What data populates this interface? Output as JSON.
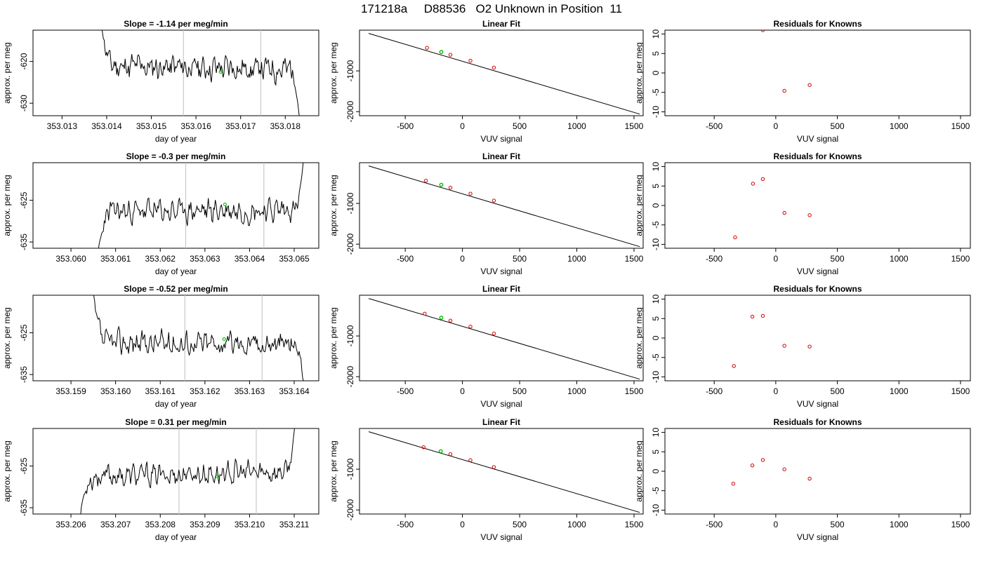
{
  "header": {
    "title": "171218a     D88536   O2 Unknown in Position  11"
  },
  "chart_data": [
    {
      "type": "line",
      "title": "Slope =  -1.14  per meg/min",
      "xlabel": "day of year",
      "ylabel": "approx. per meg",
      "xlim": [
        353.01235,
        353.01875
      ],
      "ylim": [
        -633,
        -612.5
      ],
      "xticks": [
        353.013,
        353.014,
        353.015,
        353.016,
        353.017,
        353.018
      ],
      "yticks": [
        -620,
        -630
      ],
      "xtick_labels": [
        "353.013",
        "353.014",
        "353.015",
        "353.016",
        "353.017",
        "353.018"
      ],
      "ytick_labels": [
        "-620",
        "-630"
      ],
      "vlines": [
        353.01572,
        353.01745
      ],
      "marker": {
        "x": 353.01655,
        "y": -622.5
      },
      "trace": {
        "x_start": 353.01385,
        "x_end": 353.01835,
        "start_level": -609,
        "end_level": -637,
        "mean": -621.5,
        "drift": -0.8,
        "amplitude": 2.2,
        "seed": 11
      }
    },
    {
      "type": "scatter",
      "title": "Linear Fit",
      "xlabel": "VUV signal",
      "ylabel": "approx. per meg",
      "xlim": [
        -900,
        1580
      ],
      "ylim": [
        -2100,
        0
      ],
      "xticks": [
        -500,
        0,
        500,
        1000,
        1500
      ],
      "yticks": [
        -1000,
        -2000
      ],
      "xtick_labels": [
        "-500",
        "0",
        "500",
        "1000",
        "1500"
      ],
      "ytick_labels": [
        "-1000",
        "-2000"
      ],
      "fit_line": {
        "x": [
          -820,
          1550
        ],
        "y": [
          -80,
          -2060
        ]
      },
      "knowns": [
        {
          "x": -310,
          "y": -433
        },
        {
          "x": -105,
          "y": -603
        },
        {
          "x": 70,
          "y": -750
        },
        {
          "x": 275,
          "y": -920
        }
      ],
      "unknown": {
        "x": -185,
        "y": -537
      }
    },
    {
      "type": "scatter",
      "title": "Residuals for Knowns",
      "xlabel": "VUV signal",
      "ylabel": "approx. per meg",
      "xlim": [
        -900,
        1580
      ],
      "ylim": [
        -11,
        11
      ],
      "xticks": [
        -500,
        0,
        500,
        1000,
        1500
      ],
      "yticks": [
        10,
        5,
        0,
        -5,
        -10
      ],
      "xtick_labels": [
        "-500",
        "0",
        "500",
        "1000",
        "1500"
      ],
      "ytick_labels": [
        "10",
        "5",
        "0",
        "-5",
        "-10"
      ],
      "points": [
        {
          "x": -105,
          "y": 11
        },
        {
          "x": 70,
          "y": -4.6
        },
        {
          "x": 275,
          "y": -3.1
        }
      ]
    },
    {
      "type": "line",
      "title": "Slope =  -0.3  per meg/min",
      "xlabel": "day of year",
      "ylabel": "approx. per meg",
      "xlim": [
        353.05915,
        353.06555
      ],
      "ylim": [
        -636.5,
        -616
      ],
      "xticks": [
        353.06,
        353.061,
        353.062,
        353.063,
        353.064,
        353.065
      ],
      "yticks": [
        -625,
        -635
      ],
      "xtick_labels": [
        "353.060",
        "353.061",
        "353.062",
        "353.063",
        "353.064",
        "353.065"
      ],
      "ytick_labels": [
        "-625",
        "-635"
      ],
      "vlines": [
        353.06257,
        353.06432
      ],
      "marker": {
        "x": 353.06345,
        "y": -626
      },
      "trace": {
        "x_start": 353.06055,
        "x_end": 353.06525,
        "start_level": -643,
        "end_level": -610,
        "mean": -627.5,
        "drift": 0.6,
        "amplitude": 2.0,
        "seed": 23
      }
    },
    {
      "type": "scatter",
      "title": "Linear Fit",
      "xlabel": "VUV signal",
      "ylabel": "approx. per meg",
      "xlim": [
        -900,
        1580
      ],
      "ylim": [
        -2100,
        0
      ],
      "xticks": [
        -500,
        0,
        500,
        1000,
        1500
      ],
      "yticks": [
        -1000,
        -2000
      ],
      "xtick_labels": [
        "-500",
        "0",
        "500",
        "1000",
        "1500"
      ],
      "ytick_labels": [
        "-1000",
        "-2000"
      ],
      "fit_line": {
        "x": [
          -820,
          1550
        ],
        "y": [
          -80,
          -2060
        ]
      },
      "knowns": [
        {
          "x": -320,
          "y": -443
        },
        {
          "x": -105,
          "y": -613
        },
        {
          "x": 70,
          "y": -760
        },
        {
          "x": 275,
          "y": -930
        }
      ],
      "unknown": {
        "x": -185,
        "y": -543
      }
    },
    {
      "type": "scatter",
      "title": "Residuals for Knowns",
      "xlabel": "VUV signal",
      "ylabel": "approx. per meg",
      "xlim": [
        -900,
        1580
      ],
      "ylim": [
        -11,
        11
      ],
      "xticks": [
        -500,
        0,
        500,
        1000,
        1500
      ],
      "yticks": [
        10,
        5,
        0,
        -5,
        -10
      ],
      "xtick_labels": [
        "-500",
        "0",
        "500",
        "1000",
        "1500"
      ],
      "ytick_labels": [
        "10",
        "5",
        "0",
        "-5",
        "-10"
      ],
      "points": [
        {
          "x": -330,
          "y": -8.2
        },
        {
          "x": -185,
          "y": 5.6
        },
        {
          "x": -105,
          "y": 6.8
        },
        {
          "x": 70,
          "y": -1.9
        },
        {
          "x": 275,
          "y": -2.5
        }
      ]
    },
    {
      "type": "line",
      "title": "Slope =  -0.52  per meg/min",
      "xlabel": "day of year",
      "ylabel": "approx. per meg",
      "xlim": [
        353.15815,
        353.16455
      ],
      "ylim": [
        -636.5,
        -616
      ],
      "xticks": [
        353.159,
        353.16,
        353.161,
        353.162,
        353.163,
        353.164
      ],
      "yticks": [
        -625,
        -635
      ],
      "xtick_labels": [
        "353.159",
        "353.160",
        "353.161",
        "353.162",
        "353.163",
        "353.164"
      ],
      "ytick_labels": [
        "-625",
        "-635"
      ],
      "vlines": [
        353.16155,
        353.16328
      ],
      "marker": {
        "x": 353.16243,
        "y": -626.5
      },
      "trace": {
        "x_start": 353.15945,
        "x_end": 353.16425,
        "start_level": -612,
        "end_level": -640,
        "mean": -627.5,
        "drift": -0.3,
        "amplitude": 2.1,
        "seed": 37
      }
    },
    {
      "type": "scatter",
      "title": "Linear Fit",
      "xlabel": "VUV signal",
      "ylabel": "approx. per meg",
      "xlim": [
        -900,
        1580
      ],
      "ylim": [
        -2100,
        0
      ],
      "xticks": [
        -500,
        0,
        500,
        1000,
        1500
      ],
      "yticks": [
        -1000,
        -2000
      ],
      "xtick_labels": [
        "-500",
        "0",
        "500",
        "1000",
        "1500"
      ],
      "ytick_labels": [
        "-1000",
        "-2000"
      ],
      "fit_line": {
        "x": [
          -820,
          1550
        ],
        "y": [
          -80,
          -2060
        ]
      },
      "knowns": [
        {
          "x": -330,
          "y": -453
        },
        {
          "x": -105,
          "y": -623
        },
        {
          "x": 70,
          "y": -770
        },
        {
          "x": 275,
          "y": -940
        }
      ],
      "unknown": {
        "x": -185,
        "y": -553
      }
    },
    {
      "type": "scatter",
      "title": "Residuals for Knowns",
      "xlabel": "VUV signal",
      "ylabel": "approx. per meg",
      "xlim": [
        -900,
        1580
      ],
      "ylim": [
        -11,
        11
      ],
      "xticks": [
        -500,
        0,
        500,
        1000,
        1500
      ],
      "yticks": [
        10,
        5,
        0,
        -5,
        -10
      ],
      "xtick_labels": [
        "-500",
        "0",
        "500",
        "1000",
        "1500"
      ],
      "ytick_labels": [
        "10",
        "5",
        "0",
        "-5",
        "-10"
      ],
      "points": [
        {
          "x": -340,
          "y": -7.2
        },
        {
          "x": -190,
          "y": 5.5
        },
        {
          "x": -105,
          "y": 5.7
        },
        {
          "x": 70,
          "y": -2
        },
        {
          "x": 275,
          "y": -2.2
        }
      ]
    },
    {
      "type": "line",
      "title": "Slope =  0.31  per meg/min",
      "xlabel": "day of year",
      "ylabel": "approx. per meg",
      "xlim": [
        353.20515,
        353.21155
      ],
      "ylim": [
        -636.5,
        -616
      ],
      "xticks": [
        353.206,
        353.207,
        353.208,
        353.209,
        353.21,
        353.211
      ],
      "yticks": [
        -625,
        -635
      ],
      "xtick_labels": [
        "353.206",
        "353.207",
        "353.208",
        "353.209",
        "353.210",
        "353.211"
      ],
      "ytick_labels": [
        "-625",
        "-635"
      ],
      "vlines": [
        353.20842,
        353.21015
      ],
      "marker": {
        "x": 353.20928,
        "y": -627.5
      },
      "trace": {
        "x_start": 353.20615,
        "x_end": 353.21105,
        "start_level": -641,
        "end_level": -612,
        "mean": -627,
        "drift": 1.3,
        "amplitude": 1.9,
        "seed": 53
      }
    },
    {
      "type": "scatter",
      "title": "Linear Fit",
      "xlabel": "VUV signal",
      "ylabel": "approx. per meg",
      "xlim": [
        -900,
        1580
      ],
      "ylim": [
        -2100,
        0
      ],
      "xticks": [
        -500,
        0,
        500,
        1000,
        1500
      ],
      "yticks": [
        -1000,
        -2000
      ],
      "xtick_labels": [
        "-500",
        "0",
        "500",
        "1000",
        "1500"
      ],
      "ytick_labels": [
        "-1000",
        "-2000"
      ],
      "fit_line": {
        "x": [
          -820,
          1550
        ],
        "y": [
          -80,
          -2060
        ]
      },
      "knowns": [
        {
          "x": -340,
          "y": -460
        },
        {
          "x": -105,
          "y": -632
        },
        {
          "x": 70,
          "y": -778
        },
        {
          "x": 275,
          "y": -948
        }
      ],
      "unknown": {
        "x": -190,
        "y": -560
      }
    },
    {
      "type": "scatter",
      "title": "Residuals for Knowns",
      "xlabel": "VUV signal",
      "ylabel": "approx. per meg",
      "xlim": [
        -900,
        1580
      ],
      "ylim": [
        -11,
        11
      ],
      "xticks": [
        -500,
        0,
        500,
        1000,
        1500
      ],
      "yticks": [
        10,
        5,
        0,
        -5,
        -10
      ],
      "xtick_labels": [
        "-500",
        "0",
        "500",
        "1000",
        "1500"
      ],
      "ytick_labels": [
        "10",
        "5",
        "0",
        "-5",
        "-10"
      ],
      "points": [
        {
          "x": -345,
          "y": -3.2
        },
        {
          "x": -190,
          "y": 1.5
        },
        {
          "x": -105,
          "y": 2.9
        },
        {
          "x": 70,
          "y": 0.5
        },
        {
          "x": 275,
          "y": -1.9
        }
      ]
    }
  ]
}
